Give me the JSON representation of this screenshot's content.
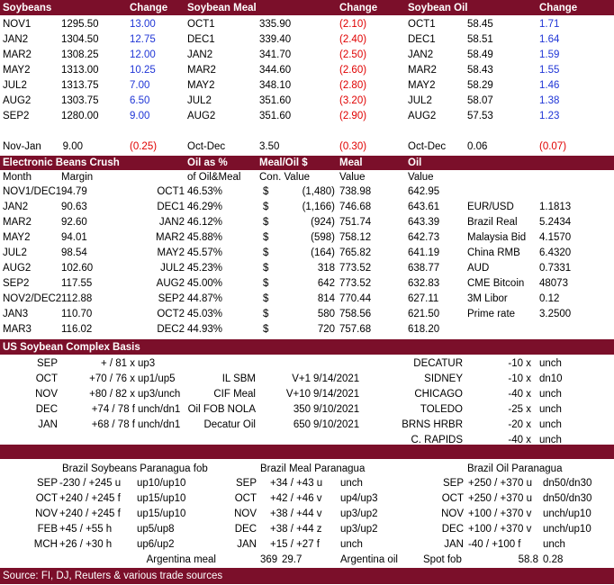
{
  "colors": {
    "header_bg": "#7b0f2a",
    "positive": "#1f35d6",
    "negative": "#e00000"
  },
  "futures": {
    "headers": [
      "Soybeans",
      "Change",
      "Soybean Meal",
      "Change",
      "Soybean Oil",
      "Change"
    ],
    "rows": [
      {
        "sb_m": "NOV1",
        "sb_p": "1295.50",
        "sb_c": "13.00",
        "sm_m": "OCT1",
        "sm_p": "335.90",
        "sm_c": "(2.10)",
        "so_m": "OCT1",
        "so_p": "58.45",
        "so_c": "1.71"
      },
      {
        "sb_m": "JAN2",
        "sb_p": "1304.50",
        "sb_c": "12.75",
        "sm_m": "DEC1",
        "sm_p": "339.40",
        "sm_c": "(2.40)",
        "so_m": "DEC1",
        "so_p": "58.51",
        "so_c": "1.64"
      },
      {
        "sb_m": "MAR2",
        "sb_p": "1308.25",
        "sb_c": "12.00",
        "sm_m": "JAN2",
        "sm_p": "341.70",
        "sm_c": "(2.50)",
        "so_m": "JAN2",
        "so_p": "58.49",
        "so_c": "1.59"
      },
      {
        "sb_m": "MAY2",
        "sb_p": "1313.00",
        "sb_c": "10.25",
        "sm_m": "MAR2",
        "sm_p": "344.60",
        "sm_c": "(2.60)",
        "so_m": "MAR2",
        "so_p": "58.43",
        "so_c": "1.55"
      },
      {
        "sb_m": "JUL2",
        "sb_p": "1313.75",
        "sb_c": "7.00",
        "sm_m": "MAY2",
        "sm_p": "348.10",
        "sm_c": "(2.80)",
        "so_m": "MAY2",
        "so_p": "58.29",
        "so_c": "1.46"
      },
      {
        "sb_m": "AUG2",
        "sb_p": "1303.75",
        "sb_c": "6.50",
        "sm_m": "JUL2",
        "sm_p": "351.60",
        "sm_c": "(3.20)",
        "so_m": "JUL2",
        "so_p": "58.07",
        "so_c": "1.38"
      },
      {
        "sb_m": "SEP2",
        "sb_p": "1280.00",
        "sb_c": "9.00",
        "sm_m": "AUG2",
        "sm_p": "351.60",
        "sm_c": "(2.90)",
        "so_m": "AUG2",
        "so_p": "57.53",
        "so_c": "1.23"
      }
    ],
    "spreads": {
      "sb_l": "Nov-Jan",
      "sb_v": "9.00",
      "sb_c": "(0.25)",
      "sm_l": "Oct-Dec",
      "sm_v": "3.50",
      "sm_c": "(0.30)",
      "so_l": "Oct-Dec",
      "so_v": "0.06",
      "so_c": "(0.07)"
    }
  },
  "crush": {
    "title": "Electronic Beans Crush",
    "h1": {
      "oil_pct": "Oil as %",
      "meal_oil": "Meal/Oil $",
      "meal": "Meal",
      "oil": "Oil"
    },
    "h2": {
      "month": "Month",
      "margin": "Margin",
      "oil_meal": "of Oil&Meal",
      "con_value": "Con. Value",
      "meal_value": "Value",
      "oil_value": "Value"
    },
    "rows": [
      {
        "m": "NOV1/DEC1",
        "margin": "94.79",
        "om": "OCT1",
        "pct": "46.53%",
        "d": "$",
        "cv": "(1,480)",
        "mv": "738.98",
        "ov": "642.95",
        "fx_l": "",
        "fx_v": ""
      },
      {
        "m": "JAN2",
        "margin": "90.63",
        "om": "DEC1",
        "pct": "46.29%",
        "d": "$",
        "cv": "(1,166)",
        "mv": "746.68",
        "ov": "643.61",
        "fx_l": "EUR/USD",
        "fx_v": "1.1813"
      },
      {
        "m": "MAR2",
        "margin": "92.60",
        "om": "JAN2",
        "pct": "46.12%",
        "d": "$",
        "cv": "(924)",
        "mv": "751.74",
        "ov": "643.39",
        "fx_l": "Brazil Real",
        "fx_v": "5.2434"
      },
      {
        "m": "MAY2",
        "margin": "94.01",
        "om": "MAR2",
        "pct": "45.88%",
        "d": "$",
        "cv": "(598)",
        "mv": "758.12",
        "ov": "642.73",
        "fx_l": "Malaysia Bid",
        "fx_v": "4.1570"
      },
      {
        "m": "JUL2",
        "margin": "98.54",
        "om": "MAY2",
        "pct": "45.57%",
        "d": "$",
        "cv": "(164)",
        "mv": "765.82",
        "ov": "641.19",
        "fx_l": "China RMB",
        "fx_v": "6.4320"
      },
      {
        "m": "AUG2",
        "margin": "102.60",
        "om": "JUL2",
        "pct": "45.23%",
        "d": "$",
        "cv": "318",
        "mv": "773.52",
        "ov": "638.77",
        "fx_l": "AUD",
        "fx_v": "0.7331"
      },
      {
        "m": "SEP2",
        "margin": "117.55",
        "om": "AUG2",
        "pct": "45.00%",
        "d": "$",
        "cv": "642",
        "mv": "773.52",
        "ov": "632.83",
        "fx_l": "CME Bitcoin",
        "fx_v": "48073"
      },
      {
        "m": "NOV2/DEC2",
        "margin": "112.88",
        "om": "SEP2",
        "pct": "44.87%",
        "d": "$",
        "cv": "814",
        "mv": "770.44",
        "ov": "627.11",
        "fx_l": "3M Libor",
        "fx_v": "0.12"
      },
      {
        "m": "JAN3",
        "margin": "110.70",
        "om": "OCT2",
        "pct": "45.03%",
        "d": "$",
        "cv": "580",
        "mv": "758.56",
        "ov": "621.50",
        "fx_l": "Prime rate",
        "fx_v": "3.2500"
      },
      {
        "m": "MAR3",
        "margin": "116.02",
        "om": "DEC2",
        "pct": "44.93%",
        "d": "$",
        "cv": "720",
        "mv": "757.68",
        "ov": "618.20",
        "fx_l": "",
        "fx_v": ""
      }
    ]
  },
  "basis": {
    "title": "US Soybean Complex Basis",
    "rows": [
      {
        "m": "SEP",
        "q": "+ / 81 x",
        "ch": "up3",
        "pl": "",
        "pd": "",
        "pv": "",
        "loc": "DECATUR",
        "lq": "-10 x",
        "lc": "unch"
      },
      {
        "m": "OCT",
        "q": "+70 / 76 x",
        "ch": "up1/up5",
        "pl": "IL SBM",
        "pd": "V+1",
        "pv": "9/14/2021",
        "loc": "SIDNEY",
        "lq": "-10 x",
        "lc": "dn10"
      },
      {
        "m": "NOV",
        "q": "+80 / 82 x",
        "ch": "up3/unch",
        "pl": "CIF Meal",
        "pd": "V+10",
        "pv": "9/14/2021",
        "loc": "CHICAGO",
        "lq": "-40 x",
        "lc": "unch"
      },
      {
        "m": "DEC",
        "q": "+74 / 78 f",
        "ch": "unch/dn1",
        "pl": "Oil FOB NOLA",
        "pd": "350",
        "pv": "9/10/2021",
        "loc": "TOLEDO",
        "lq": "-25 x",
        "lc": "unch"
      },
      {
        "m": "JAN",
        "q": "+68 / 78 f",
        "ch": "unch/dn1",
        "pl": "Decatur Oil",
        "pd": "650",
        "pv": "9/10/2021",
        "loc": "BRNS HRBR",
        "lq": "-20 x",
        "lc": "unch"
      },
      {
        "m": "",
        "q": "",
        "ch": "",
        "pl": "",
        "pd": "",
        "pv": "",
        "loc": "C. RAPIDS",
        "lq": "-40 x",
        "lc": "unch"
      }
    ]
  },
  "brazil": {
    "titles": {
      "beans": "Brazil Soybeans Paranagua fob",
      "meal": "Brazil Meal Paranagua",
      "oil": "Brazil Oil Paranagua"
    },
    "rows": [
      {
        "bm": "SEP",
        "bq": "-230 / +245 u",
        "bc": "up10/up10",
        "mm": "SEP",
        "mq": "+34 / +43 u",
        "mc": "unch",
        "om": "SEP",
        "oq": "+250 / +370 u",
        "oc": "dn50/dn30"
      },
      {
        "bm": "OCT",
        "bq": "+240 / +245 f",
        "bc": "up15/up10",
        "mm": "OCT",
        "mq": "+42 / +46 v",
        "mc": "up4/up3",
        "om": "OCT",
        "oq": "+250 / +370 u",
        "oc": "dn50/dn30"
      },
      {
        "bm": "NOV",
        "bq": "+240 / +245 f",
        "bc": "up15/up10",
        "mm": "NOV",
        "mq": "+38 / +44 v",
        "mc": "up3/up2",
        "om": "NOV",
        "oq": "+100 / +370 v",
        "oc": "unch/up10"
      },
      {
        "bm": "FEB",
        "bq": "+45 / +55 h",
        "bc": "up5/up8",
        "mm": "DEC",
        "mq": "+38 / +44 z",
        "mc": "up3/up2",
        "om": "DEC",
        "oq": "+100 / +370 v",
        "oc": "unch/up10"
      },
      {
        "bm": "MCH",
        "bq": "+26 / +30 h",
        "bc": "up6/up2",
        "mm": "JAN",
        "mq": "+15 / +27 f",
        "mc": "unch",
        "om": "JAN",
        "oq": "-40 / +100 f",
        "oc": "unch"
      }
    ],
    "argentina": {
      "meal_l": "Argentina meal",
      "meal_v1": "369",
      "meal_v2": "29.7",
      "oil_l": "Argentina oil",
      "spot_l": "Spot fob",
      "oil_v1": "58.8",
      "oil_v2": "0.28"
    }
  },
  "source": "Source: FI, DJ, Reuters & various trade sources"
}
